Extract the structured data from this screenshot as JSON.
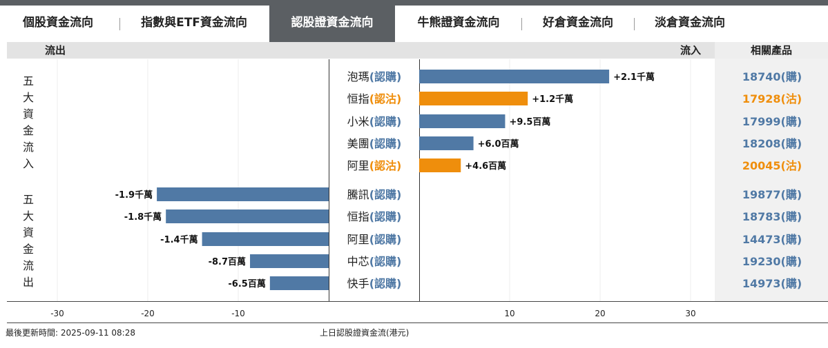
{
  "colors": {
    "call": "#5079a5",
    "put": "#ef8e0c",
    "active_tab": "#5b5f63"
  },
  "tabs": [
    {
      "label": "個股資金流向"
    },
    {
      "label": "指數與ETF資金流向"
    },
    {
      "label": "認股證資金流向"
    },
    {
      "label": "牛熊證資金流向"
    },
    {
      "label": "好倉資金流向"
    },
    {
      "label": "淡倉資金流向"
    }
  ],
  "header": {
    "outflow": "流出",
    "inflow": "流入",
    "products": "相關產品"
  },
  "sections": {
    "inflow_label": "五大資金流入",
    "outflow_label": "五大資金流出"
  },
  "chart_data": {
    "type": "bar",
    "orientation": "horizontal",
    "units": "HKD",
    "xlim": [
      -35,
      35
    ],
    "xticks": [
      "-30",
      "-20",
      "-10",
      "10",
      "20",
      "30"
    ],
    "xtick_values": [
      -30,
      -20,
      -10,
      10,
      20,
      30
    ],
    "xlabel": "上日認股證資金流(港元)",
    "rows": [
      {
        "name": "泡瑪",
        "tag": "(認購)",
        "kind": "call",
        "value_m": 21,
        "label": "+2.1千萬",
        "product": "18740(購)"
      },
      {
        "name": "恒指",
        "tag": "(認沽)",
        "kind": "put",
        "value_m": 12,
        "label": "+1.2千萬",
        "product": "17928(沽)"
      },
      {
        "name": "小米",
        "tag": "(認購)",
        "kind": "call",
        "value_m": 9.5,
        "label": "+9.5百萬",
        "product": "17999(購)"
      },
      {
        "name": "美團",
        "tag": "(認購)",
        "kind": "call",
        "value_m": 6.0,
        "label": "+6.0百萬",
        "product": "18208(購)"
      },
      {
        "name": "阿里",
        "tag": "(認沽)",
        "kind": "put",
        "value_m": 4.6,
        "label": "+4.6百萬",
        "product": "20045(沽)"
      },
      {
        "name": "騰訊",
        "tag": "(認購)",
        "kind": "call",
        "value_m": -19,
        "label": "-1.9千萬",
        "product": "19877(購)"
      },
      {
        "name": "恒指",
        "tag": "(認購)",
        "kind": "call",
        "value_m": -18,
        "label": "-1.8千萬",
        "product": "18783(購)"
      },
      {
        "name": "阿里",
        "tag": "(認購)",
        "kind": "call",
        "value_m": -14,
        "label": "-1.4千萬",
        "product": "14473(購)"
      },
      {
        "name": "中芯",
        "tag": "(認購)",
        "kind": "call",
        "value_m": -8.7,
        "label": "-8.7百萬",
        "product": "19230(購)"
      },
      {
        "name": "快手",
        "tag": "(認購)",
        "kind": "call",
        "value_m": -6.5,
        "label": "-6.5百萬",
        "product": "14973(購)"
      }
    ]
  },
  "footer": {
    "updated": "最後更新時間: 2025-09-11 08:28"
  }
}
